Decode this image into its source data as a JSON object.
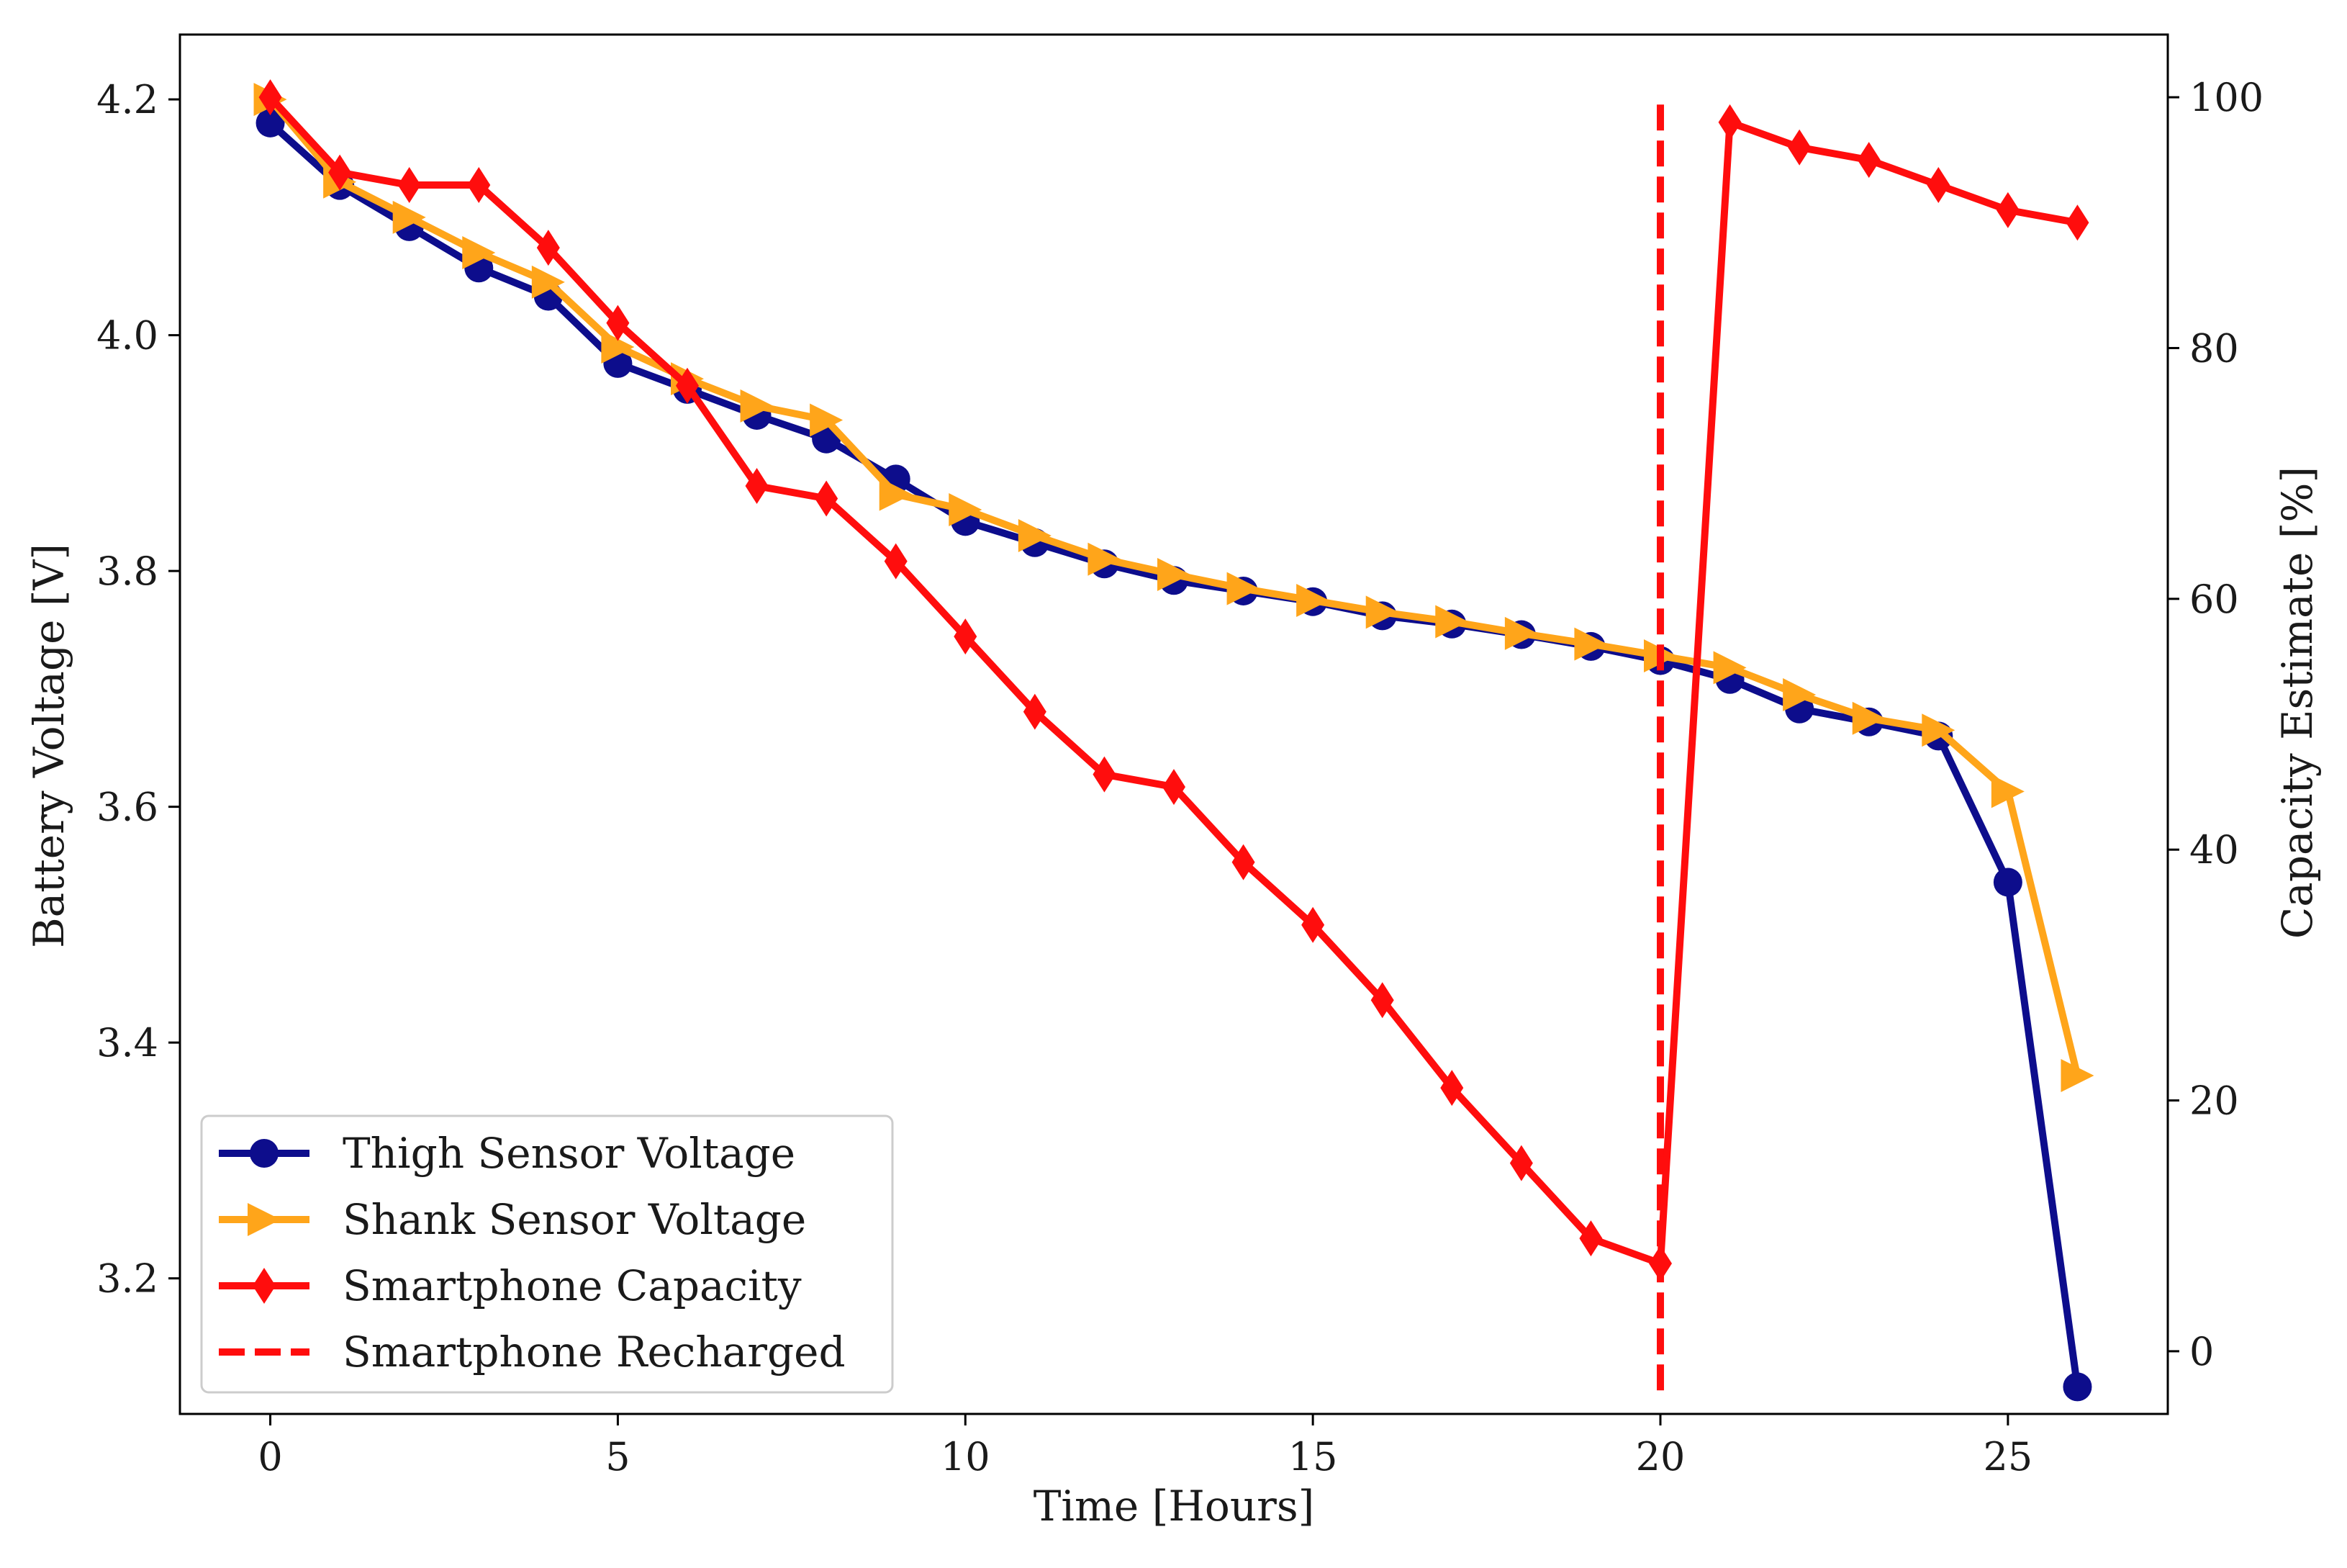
{
  "chart_data": {
    "type": "line",
    "title": "",
    "xlabel": "Time [Hours]",
    "ylabel": "Battery Voltage [V]",
    "y2label": "Capacity Estimate [%]",
    "xlim": [
      -1.3,
      27.3
    ],
    "ylim": [
      3.085,
      4.255
    ],
    "y2lim": [
      -5,
      105
    ],
    "x_ticks": [
      0,
      5,
      10,
      15,
      20,
      25
    ],
    "x_tick_labels": [
      "0",
      "5",
      "10",
      "15",
      "20",
      "25"
    ],
    "y_ticks": [
      3.2,
      3.4,
      3.6,
      3.8,
      4.0,
      4.2
    ],
    "y_tick_labels": [
      "3.2",
      "3.4",
      "3.6",
      "3.8",
      "4.0",
      "4.2"
    ],
    "y2_ticks": [
      0,
      20,
      40,
      60,
      80,
      100
    ],
    "y2_tick_labels": [
      "0",
      "20",
      "40",
      "60",
      "80",
      "100"
    ],
    "grid": false,
    "legend_position": "bottom-left",
    "series": [
      {
        "name": "Thigh Sensor Voltage",
        "axis": "left",
        "color": "#0d0d8c",
        "marker": "circle",
        "line": "solid",
        "x": [
          0,
          1,
          2,
          3,
          4,
          5,
          6,
          7,
          8,
          9,
          10,
          11,
          12,
          13,
          14,
          15,
          16,
          17,
          18,
          19,
          20,
          21,
          22,
          23,
          24,
          25,
          26
        ],
        "values": [
          4.18,
          4.127,
          4.092,
          4.057,
          4.033,
          3.976,
          3.954,
          3.932,
          3.912,
          3.878,
          3.842,
          3.824,
          3.806,
          3.792,
          3.783,
          3.774,
          3.762,
          3.755,
          3.746,
          3.736,
          3.724,
          3.708,
          3.683,
          3.672,
          3.66,
          3.536,
          3.108
        ]
      },
      {
        "name": "Shank Sensor Voltage",
        "axis": "left",
        "color": "#ffa51a",
        "marker": "triangle-right",
        "line": "solid",
        "x": [
          0,
          1,
          2,
          3,
          4,
          5,
          6,
          7,
          8,
          9,
          10,
          11,
          12,
          13,
          14,
          15,
          16,
          17,
          18,
          19,
          20,
          21,
          22,
          23,
          24,
          25,
          26
        ],
        "values": [
          4.2,
          4.13,
          4.1,
          4.07,
          4.045,
          3.99,
          3.963,
          3.94,
          3.928,
          3.865,
          3.852,
          3.83,
          3.81,
          3.797,
          3.785,
          3.775,
          3.765,
          3.757,
          3.747,
          3.738,
          3.728,
          3.718,
          3.695,
          3.675,
          3.665,
          3.613,
          3.372
        ]
      },
      {
        "name": "Smartphone Capacity",
        "axis": "right",
        "color": "#ff0d0d",
        "marker": "diamond",
        "line": "solid",
        "x": [
          0,
          1,
          2,
          3,
          4,
          5,
          6,
          7,
          8,
          9,
          10,
          11,
          12,
          13,
          14,
          15,
          16,
          17,
          18,
          19,
          20,
          21,
          22,
          23,
          24,
          25,
          26
        ],
        "values": [
          100,
          94,
          93,
          93,
          88,
          82,
          77,
          69,
          68,
          63,
          57,
          51,
          46,
          45,
          39,
          34,
          28,
          21,
          15,
          9,
          7,
          98,
          96,
          95,
          93,
          91,
          90
        ]
      }
    ],
    "annotations": [
      {
        "name": "Smartphone Recharged",
        "type": "vertical-line",
        "color": "#ff0d0d",
        "line": "dashed",
        "x": 20,
        "y_from": 3.105,
        "y_to": 4.2
      }
    ],
    "legend": [
      {
        "label": "Thigh Sensor Voltage",
        "color": "#0d0d8c",
        "marker": "circle",
        "line": "solid"
      },
      {
        "label": "Shank Sensor Voltage",
        "color": "#ffa51a",
        "marker": "triangle-right",
        "line": "solid"
      },
      {
        "label": "Smartphone Capacity",
        "color": "#ff0d0d",
        "marker": "diamond",
        "line": "solid"
      },
      {
        "label": "Smartphone Recharged",
        "color": "#ff0d0d",
        "marker": "none",
        "line": "dashed"
      }
    ]
  }
}
